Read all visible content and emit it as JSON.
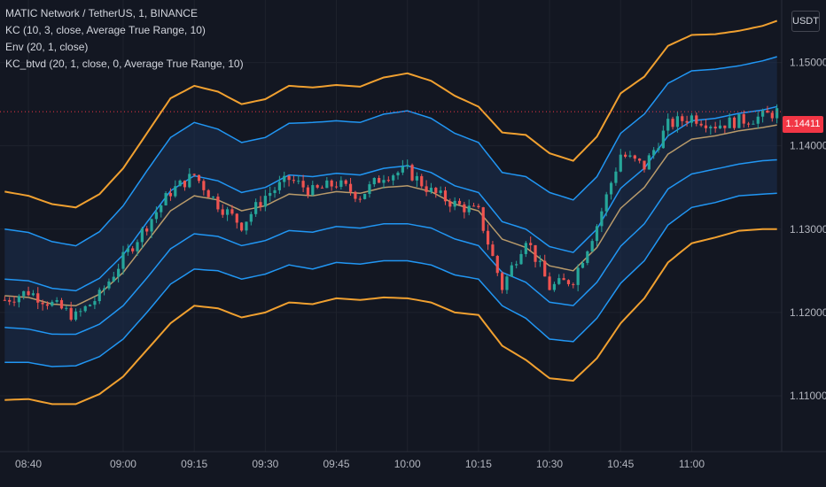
{
  "legend": {
    "symbol": "MATIC Network / TetherUS, 1, BINANCE",
    "kc": "KC (10, 3, close, Average True Range, 10)",
    "env": "Env (20, 1, close)",
    "kc_btvd": "KC_btvd (20, 1, close, 0, Average True Range, 10)"
  },
  "price_axis": {
    "currency": "USDT",
    "last_price": "1.14411"
  },
  "colors": {
    "background": "#131722",
    "up": "#26a69a",
    "down": "#ef5350",
    "kc_outer": "#f0a030",
    "env_bands": "#2196f3",
    "kc_basis": "#b89a6a",
    "fill": "#1b3050",
    "last_price_label": "#f23645"
  },
  "chart_data": {
    "type": "candlestick",
    "title": "MATIC Network / TetherUS, 1, BINANCE",
    "ylim": [
      1.1033,
      1.1575
    ],
    "y_ticks": [
      "1.15000",
      "1.14000",
      "1.13000",
      "1.12000",
      "1.11000"
    ],
    "y_tick_values": [
      1.15,
      1.14,
      1.13,
      1.12,
      1.11
    ],
    "x_ticks": [
      "08:40",
      "09:00",
      "09:15",
      "09:30",
      "09:45",
      "10:00",
      "10:15",
      "10:30",
      "10:45",
      "11:00"
    ],
    "x_tick_minutes": [
      520,
      540,
      555,
      570,
      585,
      600,
      615,
      630,
      645,
      660
    ],
    "x_range_minutes": [
      514,
      679
    ],
    "anchors": {
      "minutes": [
        515,
        520,
        525,
        530,
        535,
        540,
        545,
        550,
        555,
        560,
        565,
        570,
        575,
        580,
        585,
        590,
        595,
        600,
        605,
        610,
        615,
        620,
        625,
        630,
        635,
        640,
        645,
        650,
        655,
        660,
        665,
        670,
        675,
        678
      ],
      "close": [
        1.1215,
        1.1225,
        1.121,
        1.1195,
        1.122,
        1.1265,
        1.1305,
        1.1345,
        1.1365,
        1.133,
        1.1305,
        1.134,
        1.136,
        1.1345,
        1.1355,
        1.134,
        1.1365,
        1.137,
        1.1345,
        1.133,
        1.132,
        1.123,
        1.129,
        1.123,
        1.124,
        1.1305,
        1.139,
        1.1375,
        1.1425,
        1.1435,
        1.1425,
        1.143,
        1.1435,
        1.1441
      ],
      "kc_basis": [
        1.122,
        1.1218,
        1.121,
        1.1208,
        1.1222,
        1.1248,
        1.1285,
        1.1322,
        1.134,
        1.1335,
        1.1322,
        1.1328,
        1.1342,
        1.134,
        1.1345,
        1.1343,
        1.135,
        1.1352,
        1.1345,
        1.133,
        1.1322,
        1.1288,
        1.1278,
        1.1256,
        1.125,
        1.1278,
        1.1325,
        1.135,
        1.139,
        1.1408,
        1.1412,
        1.1418,
        1.1422,
        1.1425
      ],
      "kc_width": [
        0.0125,
        0.0122,
        0.012,
        0.0118,
        0.012,
        0.0125,
        0.013,
        0.0135,
        0.0132,
        0.013,
        0.0128,
        0.0128,
        0.013,
        0.013,
        0.0128,
        0.0128,
        0.0132,
        0.0135,
        0.0133,
        0.013,
        0.0125,
        0.0128,
        0.0135,
        0.0135,
        0.0132,
        0.0133,
        0.0138,
        0.0133,
        0.013,
        0.0125,
        0.0122,
        0.012,
        0.0122,
        0.0125
      ],
      "env_width": [
        0.008,
        0.0078,
        0.0075,
        0.0072,
        0.0075,
        0.008,
        0.0085,
        0.0088,
        0.0088,
        0.0085,
        0.0082,
        0.0082,
        0.0085,
        0.0088,
        0.0085,
        0.0085,
        0.0088,
        0.009,
        0.0088,
        0.0085,
        0.0082,
        0.008,
        0.0085,
        0.0088,
        0.0085,
        0.0085,
        0.009,
        0.0088,
        0.0085,
        0.0082,
        0.008,
        0.0078,
        0.008,
        0.0082
      ],
      "mid_width": [
        0.002,
        0.002,
        0.0019,
        0.0018,
        0.0019,
        0.0021,
        0.0023,
        0.0024,
        0.0024,
        0.0023,
        0.0022,
        0.0022,
        0.0023,
        0.0023,
        0.0022,
        0.0022,
        0.0023,
        0.0024,
        0.0023,
        0.0022,
        0.0022,
        0.0021,
        0.0022,
        0.0023,
        0.0022,
        0.0022,
        0.0024,
        0.0023,
        0.0022,
        0.0022,
        0.0021,
        0.0021,
        0.0021,
        0.0022
      ]
    }
  }
}
